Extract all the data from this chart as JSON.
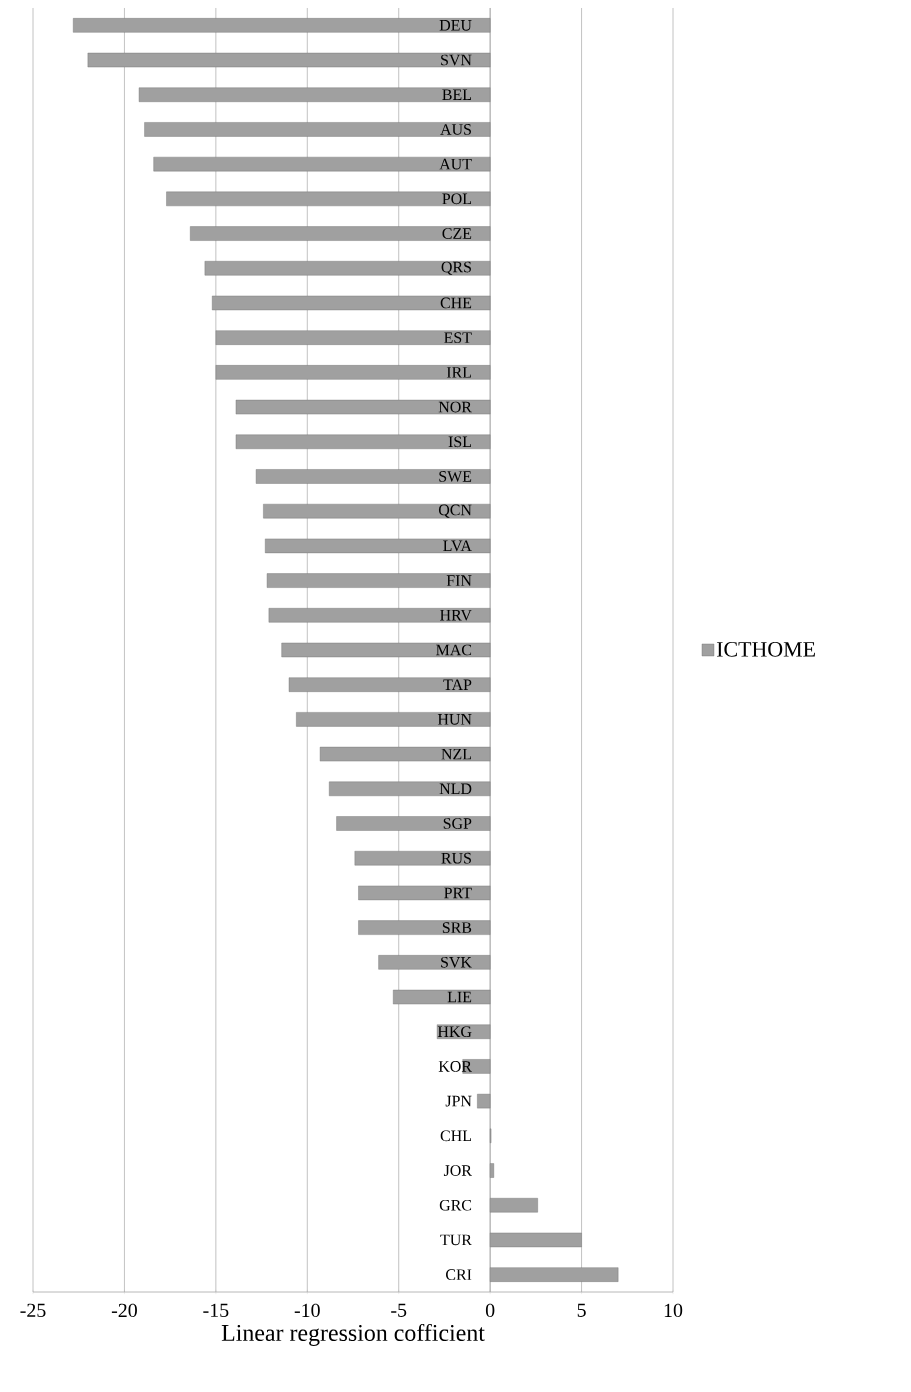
{
  "chart_data": {
    "type": "bar",
    "orientation": "horizontal",
    "xlabel": "Linear regression cofficient",
    "categories": [
      "DEU",
      "SVN",
      "BEL",
      "AUS",
      "AUT",
      "POL",
      "CZE",
      "QRS",
      "CHE",
      "EST",
      "IRL",
      "NOR",
      "ISL",
      "SWE",
      "QCN",
      "LVA",
      "FIN",
      "HRV",
      "MAC",
      "TAP",
      "HUN",
      "NZL",
      "NLD",
      "SGP",
      "RUS",
      "PRT",
      "SRB",
      "SVK",
      "LIE",
      "HKG",
      "KOR",
      "JPN",
      "CHL",
      "JOR",
      "GRC",
      "TUR",
      "CRI"
    ],
    "series": [
      {
        "name": "ICTHOME",
        "color": "#a0a0a0",
        "values": [
          -22.8,
          -22.0,
          -19.2,
          -18.9,
          -18.4,
          -17.7,
          -16.4,
          -15.6,
          -15.2,
          -15.0,
          -15.0,
          -13.9,
          -13.9,
          -12.8,
          -12.4,
          -12.3,
          -12.2,
          -12.1,
          -11.4,
          -11.0,
          -10.6,
          -9.3,
          -8.8,
          -8.4,
          -7.4,
          -7.2,
          -7.2,
          -6.1,
          -5.3,
          -2.9,
          -1.5,
          -0.7,
          0.05,
          0.2,
          2.6,
          5.0,
          7.0
        ]
      }
    ],
    "xlim": [
      -25,
      10
    ],
    "xticks": [
      -25,
      -20,
      -15,
      -10,
      -5,
      0,
      5,
      10
    ],
    "grid": "x",
    "legend": "right"
  }
}
